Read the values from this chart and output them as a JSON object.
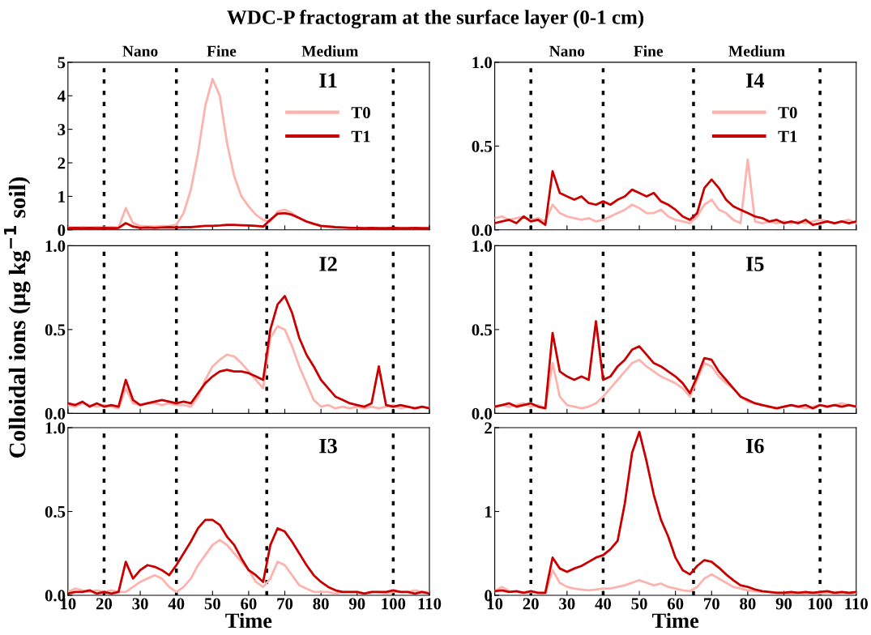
{
  "chart_data": [
    {
      "type": "line",
      "title": "WDC-P fractogram at the surface layer (0-1 cm)",
      "ylabel": "Colloidal ions (μg kg$^{−1}$ soil)",
      "legend": "right",
      "tick_labels": "y",
      "line_style": "solid",
      "x": [
        10,
        12,
        14,
        16,
        18,
        20,
        22,
        24,
        26,
        28,
        30,
        32,
        34,
        36,
        38,
        40,
        42,
        44,
        46,
        48,
        50,
        52,
        54,
        56,
        58,
        60,
        62,
        64,
        66,
        68,
        70,
        72,
        74,
        76,
        78,
        80,
        82,
        84,
        86,
        88,
        90,
        92,
        94,
        96,
        98,
        100,
        102,
        104,
        106,
        108,
        110
      ],
      "series": [
        {
          "name": "T0",
          "color": "#fcb3ae",
          "values": [
            0.08,
            0.07,
            0.08,
            0.07,
            0.08,
            0.07,
            0.08,
            0.07,
            0.65,
            0.2,
            0.12,
            0.1,
            0.1,
            0.11,
            0.12,
            0.15,
            0.5,
            1.2,
            2.3,
            3.7,
            4.5,
            4.0,
            2.6,
            1.6,
            1.0,
            0.7,
            0.45,
            0.3,
            0.25,
            0.55,
            0.6,
            0.5,
            0.35,
            0.25,
            0.18,
            0.12,
            0.1,
            0.08,
            0.07,
            0.07,
            null,
            null,
            null,
            null,
            null,
            null,
            null,
            null,
            null,
            null,
            null
          ]
        },
        {
          "name": "T1",
          "color": "#c80000",
          "values": [
            0.05,
            0.06,
            0.05,
            0.06,
            0.05,
            0.06,
            0.05,
            0.06,
            0.2,
            0.1,
            0.06,
            0.07,
            0.06,
            0.07,
            0.08,
            0.07,
            0.08,
            0.08,
            0.1,
            0.12,
            0.12,
            0.13,
            0.15,
            0.15,
            0.14,
            0.13,
            0.12,
            0.1,
            0.3,
            0.48,
            0.5,
            0.45,
            0.35,
            0.25,
            0.18,
            0.12,
            0.1,
            0.08,
            0.07,
            0.06,
            0.06,
            0.05,
            0.06,
            0.05,
            0.05,
            0.06,
            0.05,
            0.05,
            0.06,
            0.05,
            0.05
          ]
        }
      ],
      "xlim": [
        10,
        110
      ],
      "xticks": [
        10,
        20,
        30,
        40,
        50,
        60,
        70,
        80,
        90,
        100,
        110
      ],
      "ylim": [
        0,
        5
      ],
      "yticks": [
        0,
        1,
        2,
        3,
        4,
        5
      ],
      "ref_lines": [
        {
          "axis": "x",
          "value": 20,
          "color": "#000000",
          "line_style": "dotted"
        },
        {
          "axis": "x",
          "value": 40,
          "color": "#000000",
          "line_style": "dotted"
        },
        {
          "axis": "x",
          "value": 65,
          "color": "#000000",
          "line_style": "dotted"
        },
        {
          "axis": "x",
          "value": 100,
          "color": "#000000",
          "line_style": "dotted"
        }
      ],
      "annotations": [
        "Nano",
        "Fine",
        "Medium",
        "I1"
      ]
    },
    {
      "type": "line",
      "legend": "right",
      "tick_labels": "y",
      "line_style": "solid",
      "x": [
        10,
        12,
        14,
        16,
        18,
        20,
        22,
        24,
        26,
        28,
        30,
        32,
        34,
        36,
        38,
        40,
        42,
        44,
        46,
        48,
        50,
        52,
        54,
        56,
        58,
        60,
        62,
        64,
        66,
        68,
        70,
        72,
        74,
        76,
        78,
        80,
        82,
        84,
        86,
        88,
        90,
        92,
        94,
        96,
        98,
        100,
        102,
        104,
        106,
        108,
        110
      ],
      "series": [
        {
          "name": "T0",
          "color": "#fcb3ae",
          "values": [
            0.07,
            0.08,
            0.06,
            0.07,
            0.08,
            0.06,
            0.07,
            0.05,
            0.15,
            0.1,
            0.08,
            0.07,
            0.06,
            0.07,
            0.05,
            0.06,
            0.08,
            0.1,
            0.12,
            0.15,
            0.13,
            0.1,
            0.1,
            0.12,
            0.08,
            0.06,
            0.05,
            0.04,
            0.08,
            0.15,
            0.18,
            0.12,
            0.1,
            0.06,
            0.04,
            0.42,
            0.05,
            0.04,
            0.05,
            0.04,
            0.05,
            0.04,
            0.05,
            0.04,
            0.05,
            0.06,
            0.05,
            0.04,
            0.05,
            0.06,
            0.04
          ]
        },
        {
          "name": "T1",
          "color": "#c80000",
          "values": [
            0.04,
            0.05,
            0.06,
            0.04,
            0.08,
            0.05,
            0.06,
            0.03,
            0.35,
            0.22,
            0.2,
            0.18,
            0.2,
            0.16,
            0.15,
            0.17,
            0.15,
            0.18,
            0.2,
            0.24,
            0.22,
            0.2,
            0.22,
            0.17,
            0.15,
            0.12,
            0.08,
            0.06,
            0.1,
            0.25,
            0.3,
            0.25,
            0.18,
            0.14,
            0.12,
            0.1,
            0.08,
            0.07,
            0.05,
            0.06,
            0.04,
            0.05,
            0.04,
            0.06,
            0.03,
            0.04,
            0.05,
            0.04,
            0.05,
            0.04,
            0.05
          ]
        }
      ],
      "xlim": [
        10,
        110
      ],
      "xticks": [
        10,
        20,
        30,
        40,
        50,
        60,
        70,
        80,
        90,
        100,
        110
      ],
      "ylim": [
        0,
        1
      ],
      "yticks": [
        {
          "value": 0,
          "label": "0.0"
        },
        {
          "value": 0.5,
          "label": "0.5"
        },
        {
          "value": 1,
          "label": "1.0"
        }
      ],
      "ref_lines": [
        {
          "axis": "x",
          "value": 20,
          "color": "#000000",
          "line_style": "dotted"
        },
        {
          "axis": "x",
          "value": 40,
          "color": "#000000",
          "line_style": "dotted"
        },
        {
          "axis": "x",
          "value": 65,
          "color": "#000000",
          "line_style": "dotted"
        },
        {
          "axis": "x",
          "value": 100,
          "color": "#000000",
          "line_style": "dotted"
        }
      ],
      "annotations": [
        "Nano",
        "Fine",
        "Medium",
        "I4"
      ]
    },
    {
      "type": "line",
      "tick_labels": "y",
      "line_style": "solid",
      "x": [
        10,
        12,
        14,
        16,
        18,
        20,
        22,
        24,
        26,
        28,
        30,
        32,
        34,
        36,
        38,
        40,
        42,
        44,
        46,
        48,
        50,
        52,
        54,
        56,
        58,
        60,
        62,
        64,
        66,
        68,
        70,
        72,
        74,
        76,
        78,
        80,
        82,
        84,
        86,
        88,
        90,
        92,
        94,
        96,
        98,
        100,
        102,
        104,
        106,
        108,
        110
      ],
      "series": [
        {
          "color": "#fcb3ae",
          "values": [
            0.05,
            0.04,
            0.06,
            0.05,
            0.04,
            0.05,
            0.04,
            0.03,
            0.15,
            0.06,
            0.05,
            0.06,
            0.06,
            0.05,
            0.06,
            0.05,
            0.05,
            0.04,
            0.1,
            0.2,
            0.28,
            0.32,
            0.35,
            0.34,
            0.3,
            0.25,
            0.2,
            0.15,
            0.45,
            0.52,
            0.5,
            0.4,
            0.28,
            0.18,
            0.08,
            0.04,
            0.05,
            0.03,
            0.04,
            0.03,
            0.04,
            0.03,
            0.04,
            0.03,
            0.04,
            0.05,
            0.03,
            0.04,
            0.03,
            0.04,
            0.03
          ]
        },
        {
          "color": "#c80000",
          "values": [
            0.06,
            0.05,
            0.07,
            0.04,
            0.06,
            0.04,
            0.05,
            0.04,
            0.2,
            0.08,
            0.05,
            0.06,
            0.07,
            0.08,
            0.07,
            0.06,
            0.07,
            0.06,
            0.12,
            0.18,
            0.22,
            0.25,
            0.26,
            0.25,
            0.25,
            0.24,
            0.22,
            0.2,
            0.5,
            0.65,
            0.7,
            0.6,
            0.45,
            0.35,
            0.28,
            0.2,
            0.15,
            0.1,
            0.08,
            0.06,
            0.05,
            0.04,
            0.06,
            0.28,
            0.05,
            0.04,
            0.05,
            0.04,
            0.03,
            0.04,
            0.03
          ]
        }
      ],
      "xlim": [
        10,
        110
      ],
      "xticks": [
        10,
        20,
        30,
        40,
        50,
        60,
        70,
        80,
        90,
        100,
        110
      ],
      "ylim": [
        0,
        1
      ],
      "yticks": [
        {
          "value": 0,
          "label": "0.0"
        },
        {
          "value": 0.5,
          "label": "0.5"
        },
        {
          "value": 1,
          "label": "1.0"
        }
      ],
      "ref_lines": [
        {
          "axis": "x",
          "value": 20,
          "color": "#000000",
          "line_style": "dotted"
        },
        {
          "axis": "x",
          "value": 40,
          "color": "#000000",
          "line_style": "dotted"
        },
        {
          "axis": "x",
          "value": 65,
          "color": "#000000",
          "line_style": "dotted"
        },
        {
          "axis": "x",
          "value": 100,
          "color": "#000000",
          "line_style": "dotted"
        }
      ],
      "annotations": [
        "I2"
      ]
    },
    {
      "type": "line",
      "tick_labels": "y",
      "line_style": "solid",
      "x": [
        10,
        12,
        14,
        16,
        18,
        20,
        22,
        24,
        26,
        28,
        30,
        32,
        34,
        36,
        38,
        40,
        42,
        44,
        46,
        48,
        50,
        52,
        54,
        56,
        58,
        60,
        62,
        64,
        66,
        68,
        70,
        72,
        74,
        76,
        78,
        80,
        82,
        84,
        86,
        88,
        90,
        92,
        94,
        96,
        98,
        100,
        102,
        104,
        106,
        108,
        110
      ],
      "series": [
        {
          "color": "#fcb3ae",
          "values": [
            0.04,
            0.05,
            0.04,
            0.05,
            0.06,
            0.04,
            0.05,
            0.03,
            0.3,
            0.1,
            0.05,
            0.04,
            0.03,
            0.04,
            0.06,
            0.1,
            0.15,
            0.2,
            0.25,
            0.3,
            0.32,
            0.28,
            0.25,
            0.22,
            0.2,
            0.18,
            0.15,
            0.1,
            0.2,
            0.3,
            0.28,
            0.22,
            0.18,
            0.15,
            0.1,
            0.07,
            0.06,
            0.05,
            0.04,
            0.03,
            0.04,
            0.05,
            0.04,
            0.03,
            0.04,
            0.05,
            0.04,
            0.05,
            0.06,
            0.05,
            0.04
          ]
        },
        {
          "color": "#c80000",
          "values": [
            0.04,
            0.05,
            0.06,
            0.04,
            0.05,
            0.06,
            0.04,
            0.03,
            0.48,
            0.25,
            0.22,
            0.2,
            0.22,
            0.2,
            0.55,
            0.2,
            0.22,
            0.28,
            0.32,
            0.38,
            0.4,
            0.35,
            0.3,
            0.28,
            0.25,
            0.22,
            0.18,
            0.12,
            0.22,
            0.33,
            0.32,
            0.25,
            0.2,
            0.15,
            0.1,
            0.08,
            0.06,
            0.05,
            0.04,
            0.03,
            0.04,
            0.05,
            0.04,
            0.05,
            0.03,
            0.05,
            0.04,
            0.05,
            0.04,
            0.05,
            0.04
          ]
        }
      ],
      "xlim": [
        10,
        110
      ],
      "xticks": [
        10,
        20,
        30,
        40,
        50,
        60,
        70,
        80,
        90,
        100,
        110
      ],
      "ylim": [
        0,
        1
      ],
      "yticks": [
        {
          "value": 0,
          "label": "0.0"
        },
        {
          "value": 0.5,
          "label": "0.5"
        },
        {
          "value": 1,
          "label": "1.0"
        }
      ],
      "ref_lines": [
        {
          "axis": "x",
          "value": 20,
          "color": "#000000",
          "line_style": "dotted"
        },
        {
          "axis": "x",
          "value": 40,
          "color": "#000000",
          "line_style": "dotted"
        },
        {
          "axis": "x",
          "value": 65,
          "color": "#000000",
          "line_style": "dotted"
        },
        {
          "axis": "x",
          "value": 100,
          "color": "#000000",
          "line_style": "dotted"
        }
      ],
      "annotations": [
        "I5"
      ]
    },
    {
      "type": "line",
      "xlabel": "Time",
      "line_style": "solid",
      "x": [
        10,
        12,
        14,
        16,
        18,
        20,
        22,
        24,
        26,
        28,
        30,
        32,
        34,
        36,
        38,
        40,
        42,
        44,
        46,
        48,
        50,
        52,
        54,
        56,
        58,
        60,
        62,
        64,
        66,
        68,
        70,
        72,
        74,
        76,
        78,
        80,
        82,
        84,
        86,
        88,
        90,
        92,
        94,
        96,
        98,
        100,
        102,
        104,
        106,
        108,
        110
      ],
      "series": [
        {
          "color": "#fcb3ae",
          "values": [
            0.02,
            0.04,
            0.03,
            0.02,
            0.03,
            0.02,
            0.03,
            0.02,
            0.02,
            0.05,
            0.08,
            0.1,
            0.12,
            0.1,
            0.05,
            0.02,
            0.05,
            0.1,
            0.18,
            0.24,
            0.3,
            0.33,
            0.3,
            0.25,
            0.2,
            0.15,
            0.08,
            0.05,
            0.1,
            0.2,
            0.18,
            0.12,
            0.06,
            0.04,
            0.02,
            0.02,
            0.02,
            0.01,
            0.02,
            0.02,
            0.02,
            0.01,
            0.02,
            0.02,
            0.01,
            0.02,
            0.02,
            0.02,
            0.03,
            0.02,
            0.02
          ]
        },
        {
          "color": "#c80000",
          "values": [
            0.01,
            0.02,
            0.02,
            0.03,
            0.01,
            0.02,
            0.01,
            0.02,
            0.2,
            0.1,
            0.15,
            0.18,
            0.17,
            0.15,
            0.12,
            0.18,
            0.25,
            0.32,
            0.4,
            0.45,
            0.45,
            0.42,
            0.35,
            0.3,
            0.22,
            0.15,
            0.12,
            0.08,
            0.3,
            0.4,
            0.38,
            0.32,
            0.25,
            0.18,
            0.12,
            0.08,
            0.05,
            0.03,
            0.02,
            0.02,
            0.02,
            0.01,
            0.02,
            0.02,
            0.02,
            0.03,
            0.02,
            0.02,
            0.01,
            0.02,
            0.01
          ]
        }
      ],
      "xlim": [
        10,
        110
      ],
      "xticks": [
        10,
        20,
        30,
        40,
        50,
        60,
        70,
        80,
        90,
        100,
        110
      ],
      "ylim": [
        0,
        1
      ],
      "yticks": [
        {
          "value": 0,
          "label": "0.0"
        },
        {
          "value": 0.5,
          "label": "0.5"
        },
        {
          "value": 1,
          "label": "1.0"
        }
      ],
      "ref_lines": [
        {
          "axis": "x",
          "value": 20,
          "color": "#000000",
          "line_style": "dotted"
        },
        {
          "axis": "x",
          "value": 40,
          "color": "#000000",
          "line_style": "dotted"
        },
        {
          "axis": "x",
          "value": 65,
          "color": "#000000",
          "line_style": "dotted"
        },
        {
          "axis": "x",
          "value": 100,
          "color": "#000000",
          "line_style": "dotted"
        }
      ],
      "annotations": [
        "I3"
      ]
    },
    {
      "type": "line",
      "xlabel": "Time",
      "line_style": "solid",
      "x": [
        10,
        12,
        14,
        16,
        18,
        20,
        22,
        24,
        26,
        28,
        30,
        32,
        34,
        36,
        38,
        40,
        42,
        44,
        46,
        48,
        50,
        52,
        54,
        56,
        58,
        60,
        62,
        64,
        66,
        68,
        70,
        72,
        74,
        76,
        78,
        80,
        82,
        84,
        86,
        88,
        90,
        92,
        94,
        96,
        98,
        100,
        102,
        104,
        106,
        108,
        110
      ],
      "series": [
        {
          "color": "#fcb3ae",
          "values": [
            0.05,
            0.1,
            0.05,
            0.04,
            0.03,
            0.04,
            0.03,
            0.02,
            0.3,
            0.15,
            0.1,
            0.08,
            0.07,
            0.06,
            0.07,
            0.08,
            0.08,
            0.1,
            0.12,
            0.15,
            0.18,
            0.15,
            0.12,
            0.14,
            0.1,
            0.08,
            0.06,
            0.05,
            0.1,
            0.2,
            0.25,
            0.2,
            0.15,
            0.1,
            0.08,
            0.06,
            0.05,
            0.04,
            0.04,
            0.03,
            0.03,
            0.02,
            0.03,
            0.02,
            0.03,
            0.02,
            0.03,
            0.02,
            0.03,
            0.02,
            0.03
          ]
        },
        {
          "color": "#c80000",
          "values": [
            0.05,
            0.06,
            0.04,
            0.05,
            0.03,
            0.05,
            0.03,
            0.03,
            0.45,
            0.32,
            0.28,
            0.32,
            0.35,
            0.4,
            0.45,
            0.48,
            0.55,
            0.65,
            1.1,
            1.7,
            1.95,
            1.6,
            1.2,
            0.9,
            0.7,
            0.45,
            0.3,
            0.25,
            0.35,
            0.42,
            0.4,
            0.33,
            0.25,
            0.18,
            0.12,
            0.1,
            0.07,
            0.05,
            0.04,
            0.03,
            0.03,
            0.04,
            0.03,
            0.04,
            0.03,
            0.04,
            0.05,
            0.03,
            0.04,
            0.03,
            0.04
          ]
        }
      ],
      "xlim": [
        10,
        110
      ],
      "xticks": [
        10,
        20,
        30,
        40,
        50,
        60,
        70,
        80,
        90,
        100,
        110
      ],
      "ylim": [
        0,
        2
      ],
      "yticks": [
        0,
        1,
        2
      ],
      "ref_lines": [
        {
          "axis": "x",
          "value": 20,
          "color": "#000000",
          "line_style": "dotted"
        },
        {
          "axis": "x",
          "value": 40,
          "color": "#000000",
          "line_style": "dotted"
        },
        {
          "axis": "x",
          "value": 65,
          "color": "#000000",
          "line_style": "dotted"
        },
        {
          "axis": "x",
          "value": 100,
          "color": "#000000",
          "line_style": "dotted"
        }
      ],
      "annotations": [
        "I6"
      ]
    }
  ]
}
